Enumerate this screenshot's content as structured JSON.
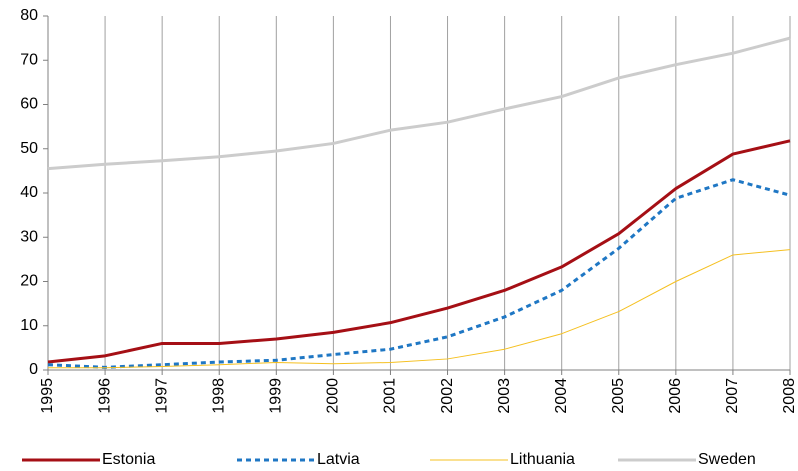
{
  "chart_data": {
    "type": "line",
    "x": [
      1995,
      1996,
      1997,
      1998,
      1999,
      2000,
      2001,
      2002,
      2003,
      2004,
      2005,
      2006,
      2007,
      2008
    ],
    "xlim": [
      1995,
      2008
    ],
    "xticks": [
      1995,
      1996,
      1997,
      1998,
      1999,
      2000,
      2001,
      2002,
      2003,
      2004,
      2005,
      2006,
      2007,
      2008
    ],
    "ylim": [
      0,
      80
    ],
    "yticks": [
      0,
      10,
      20,
      30,
      40,
      50,
      60,
      70,
      80
    ],
    "grid": "x",
    "legend": "bottom",
    "series": [
      {
        "name": "Estonia",
        "color": "#a50f15",
        "style": "solid",
        "width": 3,
        "values": [
          1.8,
          3.2,
          6,
          6,
          7,
          8.5,
          10.7,
          14,
          18,
          23.3,
          30.8,
          41,
          48.8,
          51.8
        ]
      },
      {
        "name": "Latvia",
        "color": "#1f77c4",
        "style": "dashed",
        "width": 3,
        "values": [
          1.2,
          0.6,
          1.2,
          1.8,
          2.2,
          3.5,
          4.7,
          7.5,
          12,
          18,
          27.5,
          38.8,
          43,
          39.5
        ]
      },
      {
        "name": "Lithuania",
        "color": "#f5c020",
        "style": "solid",
        "width": 1,
        "values": [
          0.5,
          0.5,
          0.8,
          1.2,
          1.7,
          1.4,
          1.7,
          2.5,
          4.7,
          8.2,
          13.2,
          20,
          26,
          27.2
        ]
      },
      {
        "name": "Sweden",
        "color": "#cccccc",
        "style": "solid",
        "width": 3,
        "values": [
          45.5,
          46.5,
          47.3,
          48.2,
          49.5,
          51.2,
          54.2,
          56,
          59,
          61.8,
          66,
          69,
          71.6,
          75
        ]
      }
    ]
  }
}
